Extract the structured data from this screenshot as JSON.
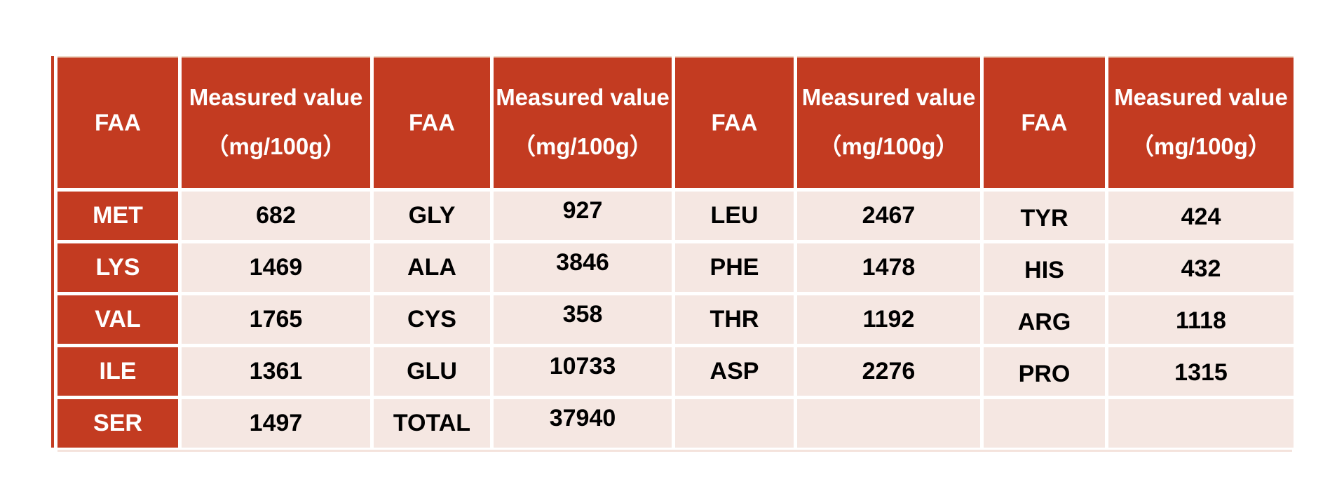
{
  "page": {
    "background": "#FFFFFF"
  },
  "colors": {
    "header_red": "#C33B21",
    "row_pink": "#F5E7E2",
    "header_text": "#FFFFFF",
    "data_text": "#000000",
    "top_edge": "#EDD9C7",
    "page_bg": "#FFFFFF"
  },
  "table": {
    "column_groups": [
      {
        "faa_header": "FAA",
        "measured_header_line1": "Measured value",
        "measured_header_line2": "（mg/100g）"
      },
      {
        "faa_header": "FAA",
        "measured_header_line1": "Measured value",
        "measured_header_line2": "（mg/100g）"
      },
      {
        "faa_header": "FAA",
        "measured_header_line1": "Measured value",
        "measured_header_line2": "（mg/100g）"
      },
      {
        "faa_header": "FAA",
        "measured_header_line1": "Measured value",
        "measured_header_line2": "（mg/100g）"
      }
    ],
    "rows": [
      [
        "MET",
        "682",
        "GLY",
        "927",
        "LEU",
        "2467",
        "TYR",
        "424"
      ],
      [
        "LYS",
        "1469",
        "ALA",
        "3846",
        "PHE",
        "1478",
        "HIS",
        "432"
      ],
      [
        "VAL",
        "1765",
        "CYS",
        "358",
        "THR",
        "1192",
        "ARG",
        "1118"
      ],
      [
        "ILE",
        "1361",
        "GLU",
        "10733",
        "ASP",
        "2276",
        "PRO",
        "1315"
      ],
      [
        "SER",
        "1497",
        "TOTAL",
        "37940",
        "",
        "",
        "",
        ""
      ]
    ]
  },
  "chart_data": {
    "type": "table",
    "title": "",
    "unit": "mg/100g",
    "columns": [
      "FAA",
      "Measured value（mg/100g）",
      "FAA",
      "Measured value（mg/100g）",
      "FAA",
      "Measured value（mg/100g）",
      "FAA",
      "Measured value（mg/100g）"
    ],
    "rows": [
      [
        "MET",
        682,
        "GLY",
        927,
        "LEU",
        2467,
        "TYR",
        424
      ],
      [
        "LYS",
        1469,
        "ALA",
        3846,
        "PHE",
        1478,
        "HIS",
        432
      ],
      [
        "VAL",
        1765,
        "CYS",
        358,
        "THR",
        1192,
        "ARG",
        1118
      ],
      [
        "ILE",
        1361,
        "GLU",
        10733,
        "ASP",
        2276,
        "PRO",
        1315
      ],
      [
        "SER",
        1497,
        "TOTAL",
        37940,
        "",
        "",
        "",
        ""
      ]
    ],
    "records": [
      {
        "faa": "MET",
        "measured_mg_per_100g": 682
      },
      {
        "faa": "LYS",
        "measured_mg_per_100g": 1469
      },
      {
        "faa": "VAL",
        "measured_mg_per_100g": 1765
      },
      {
        "faa": "ILE",
        "measured_mg_per_100g": 1361
      },
      {
        "faa": "SER",
        "measured_mg_per_100g": 1497
      },
      {
        "faa": "GLY",
        "measured_mg_per_100g": 927
      },
      {
        "faa": "ALA",
        "measured_mg_per_100g": 3846
      },
      {
        "faa": "CYS",
        "measured_mg_per_100g": 358
      },
      {
        "faa": "GLU",
        "measured_mg_per_100g": 10733
      },
      {
        "faa": "TOTAL",
        "measured_mg_per_100g": 37940
      },
      {
        "faa": "LEU",
        "measured_mg_per_100g": 2467
      },
      {
        "faa": "PHE",
        "measured_mg_per_100g": 1478
      },
      {
        "faa": "THR",
        "measured_mg_per_100g": 1192
      },
      {
        "faa": "ASP",
        "measured_mg_per_100g": 2276
      },
      {
        "faa": "TYR",
        "measured_mg_per_100g": 424
      },
      {
        "faa": "HIS",
        "measured_mg_per_100g": 432
      },
      {
        "faa": "ARG",
        "measured_mg_per_100g": 1118
      },
      {
        "faa": "PRO",
        "measured_mg_per_100g": 1315
      }
    ]
  }
}
